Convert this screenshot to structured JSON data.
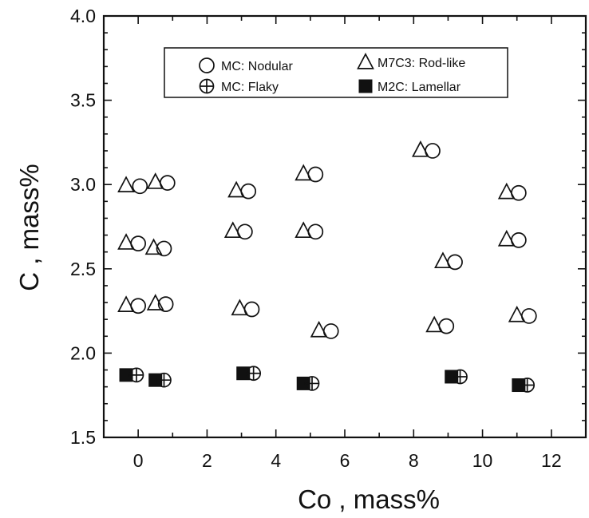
{
  "chart_data": {
    "type": "scatter",
    "xlabel": "Co , mass%",
    "ylabel": "C , mass%",
    "xlim": [
      -1,
      13
    ],
    "ylim": [
      1.5,
      4.0
    ],
    "xticks": [
      0,
      2,
      4,
      6,
      8,
      10,
      12
    ],
    "yticks": [
      1.5,
      2.0,
      2.5,
      3.0,
      3.5,
      4.0
    ],
    "x_tick_labels": [
      "0",
      "2",
      "4",
      "6",
      "8",
      "10",
      "12"
    ],
    "y_tick_labels": [
      "1.5",
      "2.0",
      "2.5",
      "3.0",
      "3.5",
      "4.0"
    ],
    "legend_position": "top",
    "series": [
      {
        "key": "mc_nodular",
        "name": "MC: Nodular",
        "marker": "circle",
        "points": [
          {
            "x": 0.05,
            "y": 2.99
          },
          {
            "x": 0.85,
            "y": 3.01
          },
          {
            "x": 3.2,
            "y": 2.96
          },
          {
            "x": 5.15,
            "y": 3.06
          },
          {
            "x": 8.55,
            "y": 3.2
          },
          {
            "x": 11.05,
            "y": 2.95
          },
          {
            "x": 0.0,
            "y": 2.65
          },
          {
            "x": 0.75,
            "y": 2.62
          },
          {
            "x": 3.1,
            "y": 2.72
          },
          {
            "x": 5.15,
            "y": 2.72
          },
          {
            "x": 9.2,
            "y": 2.54
          },
          {
            "x": 11.05,
            "y": 2.67
          },
          {
            "x": 0.0,
            "y": 2.28
          },
          {
            "x": 0.8,
            "y": 2.29
          },
          {
            "x": 3.3,
            "y": 2.26
          },
          {
            "x": 5.6,
            "y": 2.13
          },
          {
            "x": 8.95,
            "y": 2.16
          },
          {
            "x": 11.35,
            "y": 2.22
          }
        ]
      },
      {
        "key": "m7c3_rodlike",
        "name": "M7C3: Rod-like",
        "marker": "triangle",
        "points": [
          {
            "x": -0.35,
            "y": 2.99
          },
          {
            "x": 0.5,
            "y": 3.01
          },
          {
            "x": 2.85,
            "y": 2.96
          },
          {
            "x": 4.8,
            "y": 3.06
          },
          {
            "x": 8.2,
            "y": 3.2
          },
          {
            "x": 10.7,
            "y": 2.95
          },
          {
            "x": -0.35,
            "y": 2.65
          },
          {
            "x": 0.45,
            "y": 2.62
          },
          {
            "x": 2.75,
            "y": 2.72
          },
          {
            "x": 4.8,
            "y": 2.72
          },
          {
            "x": 8.85,
            "y": 2.54
          },
          {
            "x": 10.7,
            "y": 2.67
          },
          {
            "x": -0.35,
            "y": 2.28
          },
          {
            "x": 0.5,
            "y": 2.29
          },
          {
            "x": 2.95,
            "y": 2.26
          },
          {
            "x": 5.25,
            "y": 2.13
          },
          {
            "x": 8.6,
            "y": 2.16
          },
          {
            "x": 11.0,
            "y": 2.22
          }
        ]
      },
      {
        "key": "mc_flaky",
        "name": "MC: Flaky",
        "marker": "circle-plus",
        "points": [
          {
            "x": -0.05,
            "y": 1.87
          },
          {
            "x": 0.75,
            "y": 1.84
          },
          {
            "x": 3.35,
            "y": 1.88
          },
          {
            "x": 5.05,
            "y": 1.82
          },
          {
            "x": 9.35,
            "y": 1.86
          },
          {
            "x": 11.3,
            "y": 1.81
          }
        ]
      },
      {
        "key": "m2c_lamellar",
        "name": "M2C: Lamellar",
        "marker": "square",
        "points": [
          {
            "x": -0.35,
            "y": 1.87
          },
          {
            "x": 0.5,
            "y": 1.84
          },
          {
            "x": 3.05,
            "y": 1.88
          },
          {
            "x": 4.8,
            "y": 1.82
          },
          {
            "x": 9.1,
            "y": 1.86
          },
          {
            "x": 11.05,
            "y": 1.81
          }
        ]
      }
    ],
    "legend": {
      "mc_nodular": "MC: Nodular",
      "m7c3_rodlike": "M7C3: Rod-like",
      "mc_flaky": "MC: Flaky",
      "m2c_lamellar": "M2C: Lamellar"
    }
  }
}
